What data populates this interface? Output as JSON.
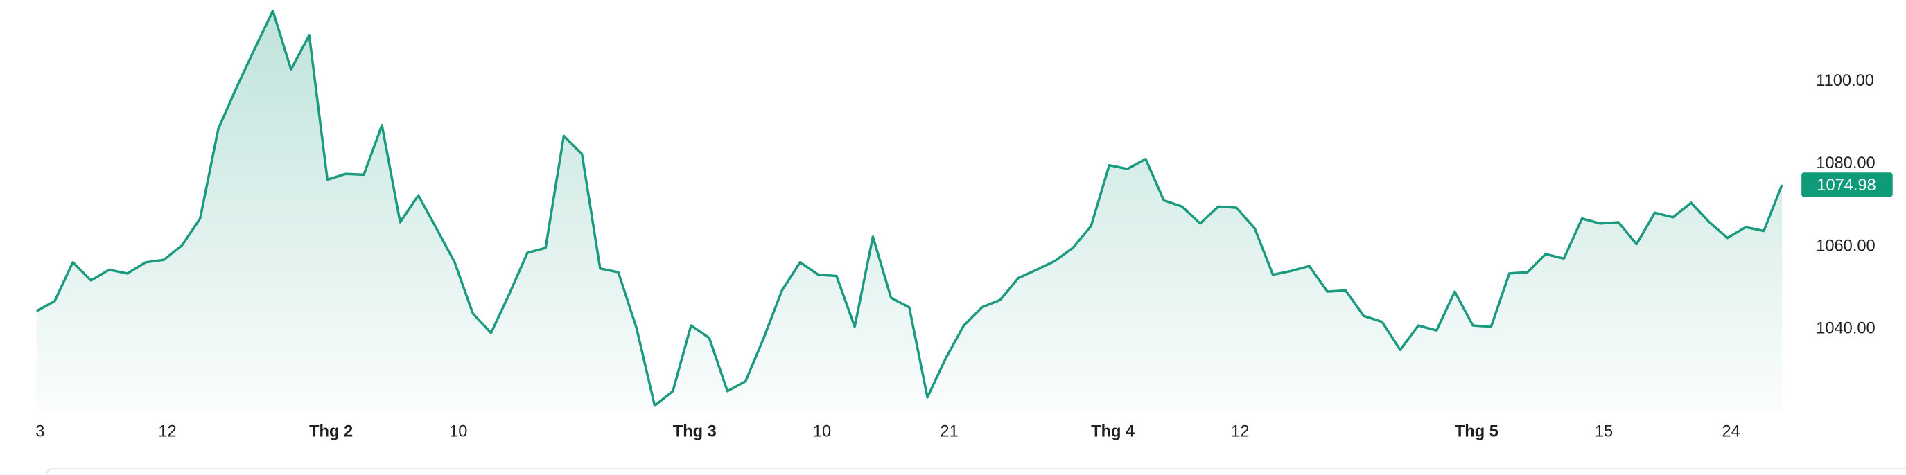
{
  "chart_data": {
    "type": "area",
    "color": "#1b9a80",
    "label_color": "#0f9a7a",
    "x": [
      0,
      1,
      2,
      3,
      4,
      5,
      6,
      7,
      8,
      9,
      10,
      11,
      12,
      13,
      14,
      15,
      16,
      17,
      18,
      19,
      20,
      21,
      22,
      23,
      24,
      25,
      26,
      27,
      28,
      29,
      30,
      31,
      32,
      33,
      34,
      35,
      36,
      37,
      38,
      39,
      40,
      41,
      42,
      43,
      44,
      45,
      46,
      47,
      48,
      49,
      50,
      51,
      52,
      53,
      54,
      55,
      56,
      57,
      58,
      59,
      60,
      61,
      62,
      63,
      64,
      65,
      66,
      67,
      68,
      69,
      70,
      71,
      72,
      73,
      74,
      75,
      76,
      77,
      78,
      79,
      80,
      81,
      82,
      83,
      84,
      85,
      86,
      87,
      88,
      89,
      90,
      91,
      92,
      93,
      94,
      95,
      96
    ],
    "series": [
      {
        "color": "#1b9a80",
        "values": [
          1044.4,
          1046.8,
          1056.2,
          1051.8,
          1054.4,
          1053.5,
          1056.2,
          1056.8,
          1060.3,
          1066.8,
          1088.5,
          1098.5,
          1107.9,
          1117.1,
          1102.9,
          1111.2,
          1076.2,
          1077.6,
          1077.4,
          1089.4,
          1065.9,
          1072.4,
          1064.4,
          1056.2,
          1043.8,
          1039.1,
          1048.5,
          1058.5,
          1059.7,
          1086.8,
          1082.4,
          1054.7,
          1053.8,
          1040.3,
          1021.5,
          1025.0,
          1040.9,
          1037.9,
          1025.0,
          1027.4,
          1037.9,
          1049.4,
          1056.2,
          1053.2,
          1052.9,
          1040.6,
          1062.4,
          1047.6,
          1045.3,
          1023.5,
          1032.9,
          1040.9,
          1045.3,
          1047.1,
          1052.4,
          1054.4,
          1056.5,
          1059.7,
          1065.0,
          1079.7,
          1078.8,
          1081.2,
          1071.2,
          1069.7,
          1065.6,
          1069.7,
          1069.4,
          1064.4,
          1053.2,
          1054.1,
          1055.3,
          1049.1,
          1049.4,
          1043.2,
          1041.8,
          1035.0,
          1040.9,
          1039.7,
          1049.1,
          1040.9,
          1040.6,
          1053.5,
          1053.8,
          1058.2,
          1057.1,
          1066.8,
          1065.6,
          1065.9,
          1060.6,
          1068.2,
          1067.1,
          1070.6,
          1065.9,
          1062.1,
          1064.7,
          1063.8,
          1074.98
        ]
      }
    ],
    "xlim": [
      0,
      96
    ],
    "xticks": [
      {
        "value": 0,
        "label": "3"
      },
      {
        "value": 7,
        "label": "12"
      },
      {
        "value": 16,
        "label": "Thg 2",
        "bold": true
      },
      {
        "value": 23,
        "label": "10"
      },
      {
        "value": 36,
        "label": "Thg 3",
        "bold": true
      },
      {
        "value": 43,
        "label": "10"
      },
      {
        "value": 50,
        "label": "21"
      },
      {
        "value": 59,
        "label": "Thg 4",
        "bold": true
      },
      {
        "value": 66,
        "label": "12"
      },
      {
        "value": 79,
        "label": "Thg 5",
        "bold": true
      },
      {
        "value": 86,
        "label": "15"
      },
      {
        "value": 93,
        "label": "24"
      }
    ],
    "ylim": [
      1020,
      1120
    ],
    "yticks": [
      {
        "value": 1040,
        "label": "1040.00"
      },
      {
        "value": 1060,
        "label": "1060.00"
      },
      {
        "value": 1080,
        "label": "1080.00"
      },
      {
        "value": 1100,
        "label": "1100.00"
      }
    ]
  }
}
